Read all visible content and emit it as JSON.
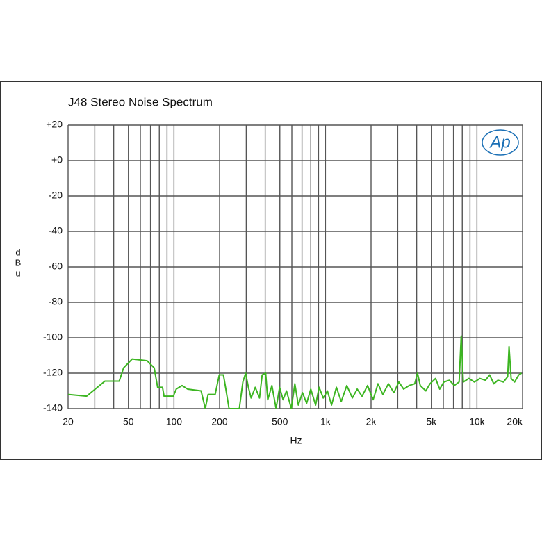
{
  "chart_data": {
    "type": "line",
    "title": "J48 Stereo Noise Spectrum",
    "xlabel": "Hz",
    "ylabel": "dBu",
    "logo": "Ap",
    "log_x": true,
    "grid": true,
    "xlim": [
      20,
      20000
    ],
    "ylim": [
      -140,
      20
    ],
    "xticks": [
      20,
      50,
      100,
      200,
      500,
      {
        "value": 1000,
        "label": "1k"
      },
      {
        "value": 2000,
        "label": "2k"
      },
      {
        "value": 5000,
        "label": "5k"
      },
      {
        "value": 10000,
        "label": "10k"
      },
      {
        "value": 20000,
        "label": "20k"
      }
    ],
    "xgrid": [
      30,
      40,
      60,
      70,
      80,
      90,
      300,
      400,
      600,
      700,
      800,
      900,
      3000,
      4000,
      6000,
      7000,
      8000,
      9000
    ],
    "yticks": [
      {
        "value": 20,
        "label": "+20"
      },
      {
        "value": 0,
        "label": "+0"
      },
      -20,
      -40,
      -60,
      -80,
      -100,
      -120,
      -140
    ],
    "x": [
      20,
      26.5,
      35,
      43.5,
      46.5,
      53,
      66.5,
      74,
      78,
      84,
      86,
      99,
      103.5,
      113,
      123,
      151,
      161,
      168,
      187,
      199,
      212,
      219,
      231,
      270,
      285,
      297,
      310,
      323,
      344,
      367,
      382,
      403,
      416,
      443,
      472,
      498,
      525,
      553,
      595,
      628,
      662,
      705,
      751,
      800,
      861,
      908,
      967,
      1030,
      1097,
      1181,
      1271,
      1383,
      1505,
      1620,
      1744,
      1897,
      2064,
      2222,
      2392,
      2602,
      2831,
      3048,
      3282,
      3570,
      3884,
      4051,
      4225,
      4597,
      4898,
      5329,
      5678,
      6048,
      6580,
      7083,
      7626,
      7872,
      8126,
      8839,
      9616,
      10462,
      11380,
      12126,
      12914,
      13762,
      14966,
      15948,
      16288,
      16812,
      17722,
      18874,
      19684
    ],
    "series": [
      {
        "color": "#3cb521",
        "values": [
          -132,
          -133,
          -124.5,
          -124.5,
          -117,
          -112,
          -113,
          -117,
          -128,
          -128,
          -133,
          -133,
          -129,
          -127,
          -129,
          -130,
          -140,
          -132,
          -132,
          -121,
          -121,
          -128,
          -140,
          -140,
          -125,
          -120,
          -128,
          -134,
          -128,
          -134,
          -121,
          -120,
          -135,
          -127,
          -140,
          -128,
          -135,
          -130,
          -140,
          -126,
          -138,
          -131,
          -137,
          -129,
          -138,
          -128,
          -134,
          -130,
          -138,
          -128,
          -136,
          -127,
          -134,
          -129,
          -133,
          -127,
          -135,
          -126,
          -132,
          -126,
          -131,
          -125,
          -129,
          -127,
          -126,
          -120,
          -127,
          -130,
          -126,
          -123,
          -129,
          -125,
          -124,
          -127,
          -125,
          -99,
          -125,
          -123,
          -125,
          -123,
          -124,
          -121,
          -126,
          -124,
          -125,
          -122,
          -105,
          -123,
          -125,
          -121,
          -120
        ]
      }
    ]
  }
}
